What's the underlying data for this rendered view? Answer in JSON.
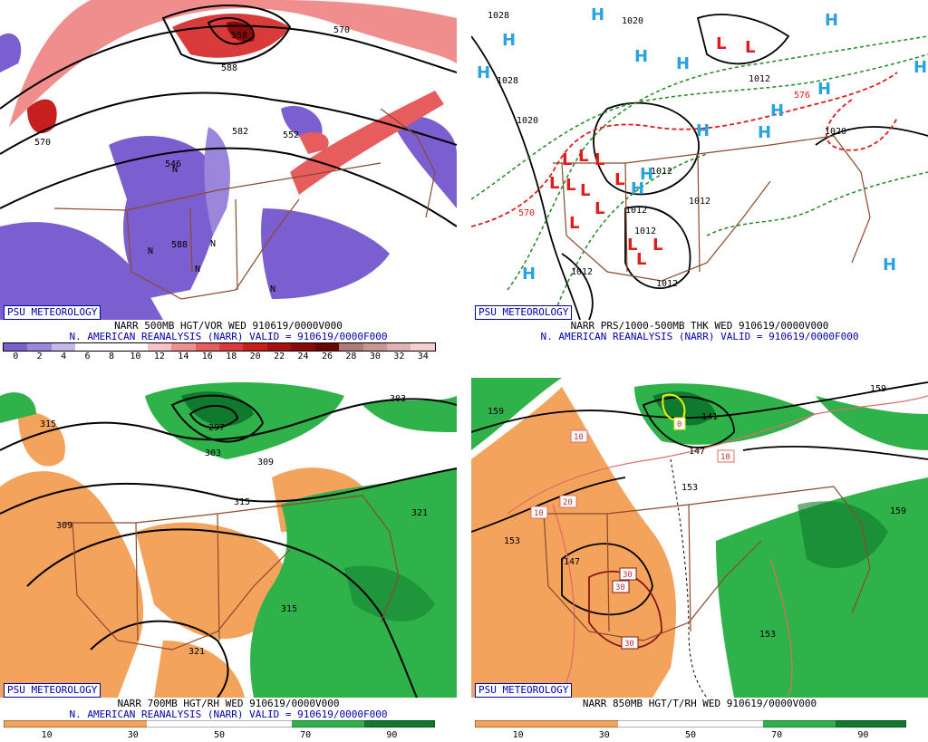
{
  "brand": "PSU METEOROLOGY",
  "panels": {
    "tl": {
      "caption": "NARR 500MB HGT/VOR WED 910619/0000V000",
      "subcaption": "N. AMERICAN REANALYSIS (NARR) VALID = 910619/0000F000",
      "colorbar": {
        "colors": [
          "#7b5fd0",
          "#9a86da",
          "#c4b8ea",
          "#ffffff",
          "#ffffff",
          "#ffffff",
          "#f6c4c4",
          "#f08e8e",
          "#e75d5d",
          "#d93b3b",
          "#c71f1f",
          "#a81111",
          "#8a0a0a",
          "#6a0505",
          "#b07a7a",
          "#c99595",
          "#e0b3b3",
          "#f4d0d0"
        ],
        "ticks": [
          "0",
          "2",
          "4",
          "6",
          "8",
          "10",
          "12",
          "14",
          "16",
          "18",
          "20",
          "22",
          "24",
          "26",
          "28",
          "30",
          "32",
          "34"
        ]
      },
      "labels": [
        "570",
        "588",
        "558",
        "570",
        "582",
        "588",
        "546",
        "552",
        "N",
        "N",
        "N",
        "N",
        "N"
      ]
    },
    "tr": {
      "caption": "NARR PRS/1000-500MB THK WED 910619/0000V000",
      "subcaption": "N. AMERICAN REANALYSIS (NARR) VALID = 910619/0000F000",
      "labels": [
        "1028",
        "1020",
        "1028",
        "1012",
        "1020",
        "570",
        "1012",
        "1012",
        "1012",
        "1012",
        "1012",
        "576",
        "1020",
        "1012"
      ],
      "high_symbol": "H",
      "low_symbol": "L"
    },
    "bl": {
      "caption": "NARR 700MB HGT/RH WED 910619/0000V000",
      "subcaption": "N. AMERICAN REANALYSIS (NARR) VALID = 910619/0000F000",
      "colorbar": {
        "ticks": [
          "10",
          "30",
          "50",
          "70",
          "90"
        ]
      },
      "labels": [
        "315",
        "297",
        "303",
        "309",
        "315",
        "309",
        "321",
        "315",
        "321",
        "303"
      ]
    },
    "br": {
      "caption": "NARR 850MB HGT/T/RH WED 910619/0000V000",
      "colorbar": {
        "ticks": [
          "10",
          "30",
          "50",
          "70",
          "90"
        ]
      },
      "labels": [
        "159",
        "141",
        "147",
        "153",
        "153",
        "147",
        "159",
        "159",
        "153"
      ],
      "temp_labels": [
        "10",
        "10",
        "10",
        "20",
        "30",
        "30",
        "30",
        "0"
      ]
    }
  },
  "colors": {
    "land_border": "#8b4a2b",
    "rh_dry": "#f3a35c",
    "rh_moist": "#2fb24a",
    "rh_wet": "#0f7a2e",
    "vort_low": "#7b5fd0",
    "vort_high": "#d93b3b",
    "high_color": "#29a3e0",
    "low_color": "#e01b1b",
    "thickness": "#e01b1b",
    "isobar_alt": "#1f8a1f",
    "brand_color": "#0000aa"
  }
}
